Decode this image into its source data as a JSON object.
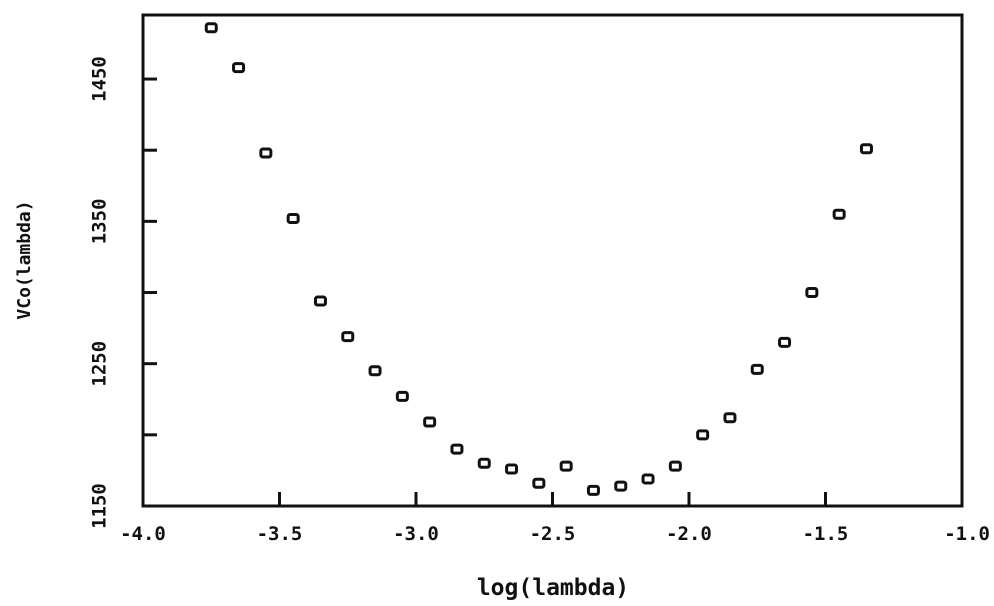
{
  "chart_data": {
    "type": "scatter",
    "title": "",
    "xlabel": "log(lambda)",
    "ylabel": "VCo(lambda)",
    "xlim": [
      -4.0,
      -1.0
    ],
    "ylim": [
      1150,
      1495
    ],
    "x_ticks": [
      -4.0,
      -3.5,
      -3.0,
      -2.5,
      -2.0,
      -1.5,
      -1.0
    ],
    "x_tick_labels": [
      "-4.0",
      "-3.5",
      "-3.0",
      "-2.5",
      "-2.0",
      "-1.5",
      "-1.0"
    ],
    "y_ticks": [
      1150,
      1200,
      1250,
      1300,
      1350,
      1400,
      1450
    ],
    "y_tick_labels": [
      "1150",
      "",
      "1250",
      "",
      "1350",
      "",
      "1450"
    ],
    "grid": false,
    "marker": "open-square",
    "series": [
      {
        "points": [
          {
            "x": -3.75,
            "y": 1486
          },
          {
            "x": -3.65,
            "y": 1458
          },
          {
            "x": -3.55,
            "y": 1398
          },
          {
            "x": -3.45,
            "y": 1352
          },
          {
            "x": -3.35,
            "y": 1294
          },
          {
            "x": -3.25,
            "y": 1269
          },
          {
            "x": -3.15,
            "y": 1245
          },
          {
            "x": -3.05,
            "y": 1227
          },
          {
            "x": -2.95,
            "y": 1209
          },
          {
            "x": -2.85,
            "y": 1190
          },
          {
            "x": -2.75,
            "y": 1180
          },
          {
            "x": -2.65,
            "y": 1176
          },
          {
            "x": -2.55,
            "y": 1166
          },
          {
            "x": -2.45,
            "y": 1178
          },
          {
            "x": -2.35,
            "y": 1161
          },
          {
            "x": -2.25,
            "y": 1164
          },
          {
            "x": -2.15,
            "y": 1169
          },
          {
            "x": -2.05,
            "y": 1178
          },
          {
            "x": -1.95,
            "y": 1200
          },
          {
            "x": -1.85,
            "y": 1212
          },
          {
            "x": -1.75,
            "y": 1246
          },
          {
            "x": -1.65,
            "y": 1265
          },
          {
            "x": -1.55,
            "y": 1300
          },
          {
            "x": -1.45,
            "y": 1355
          },
          {
            "x": -1.35,
            "y": 1401
          }
        ]
      }
    ]
  }
}
